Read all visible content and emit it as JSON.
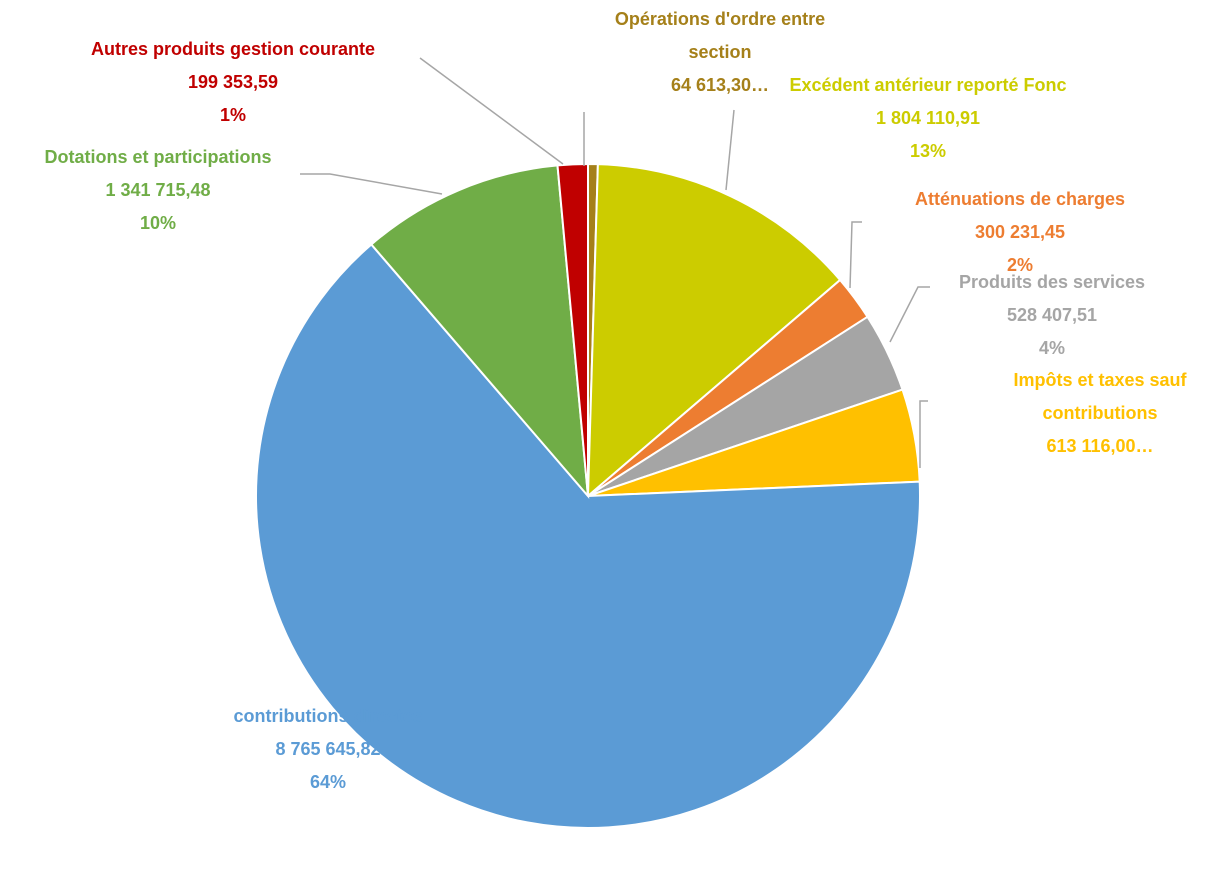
{
  "chart_data": {
    "type": "pie",
    "categories": [
      "Opérations d'ordre entre section",
      "Excédent antérieur reporté Fonc",
      "Atténuations de charges",
      "Produits des services",
      "Impôts et taxes sauf contributions",
      "contributions directes",
      "Dotations et participations",
      "Autres produits gestion courante"
    ],
    "values": [
      64613.3,
      1804110.91,
      300231.45,
      528407.51,
      613116.0,
      8765645.82,
      1341715.48,
      199353.59
    ],
    "value_labels": [
      "64 613,30…",
      "1 804 110,91",
      "300 231,45",
      "528 407,51",
      "613 116,00…",
      "8 765 645,82",
      "1 341 715,48",
      "199 353,59"
    ],
    "percent_labels": [
      null,
      "13%",
      "2%",
      "4%",
      null,
      "64%",
      "10%",
      "1%"
    ],
    "colors": [
      "#a5801a",
      "#cccc00",
      "#ed7d31",
      "#a5a5a5",
      "#ffc000",
      "#5b9bd5",
      "#70ad47",
      "#c00000"
    ]
  }
}
